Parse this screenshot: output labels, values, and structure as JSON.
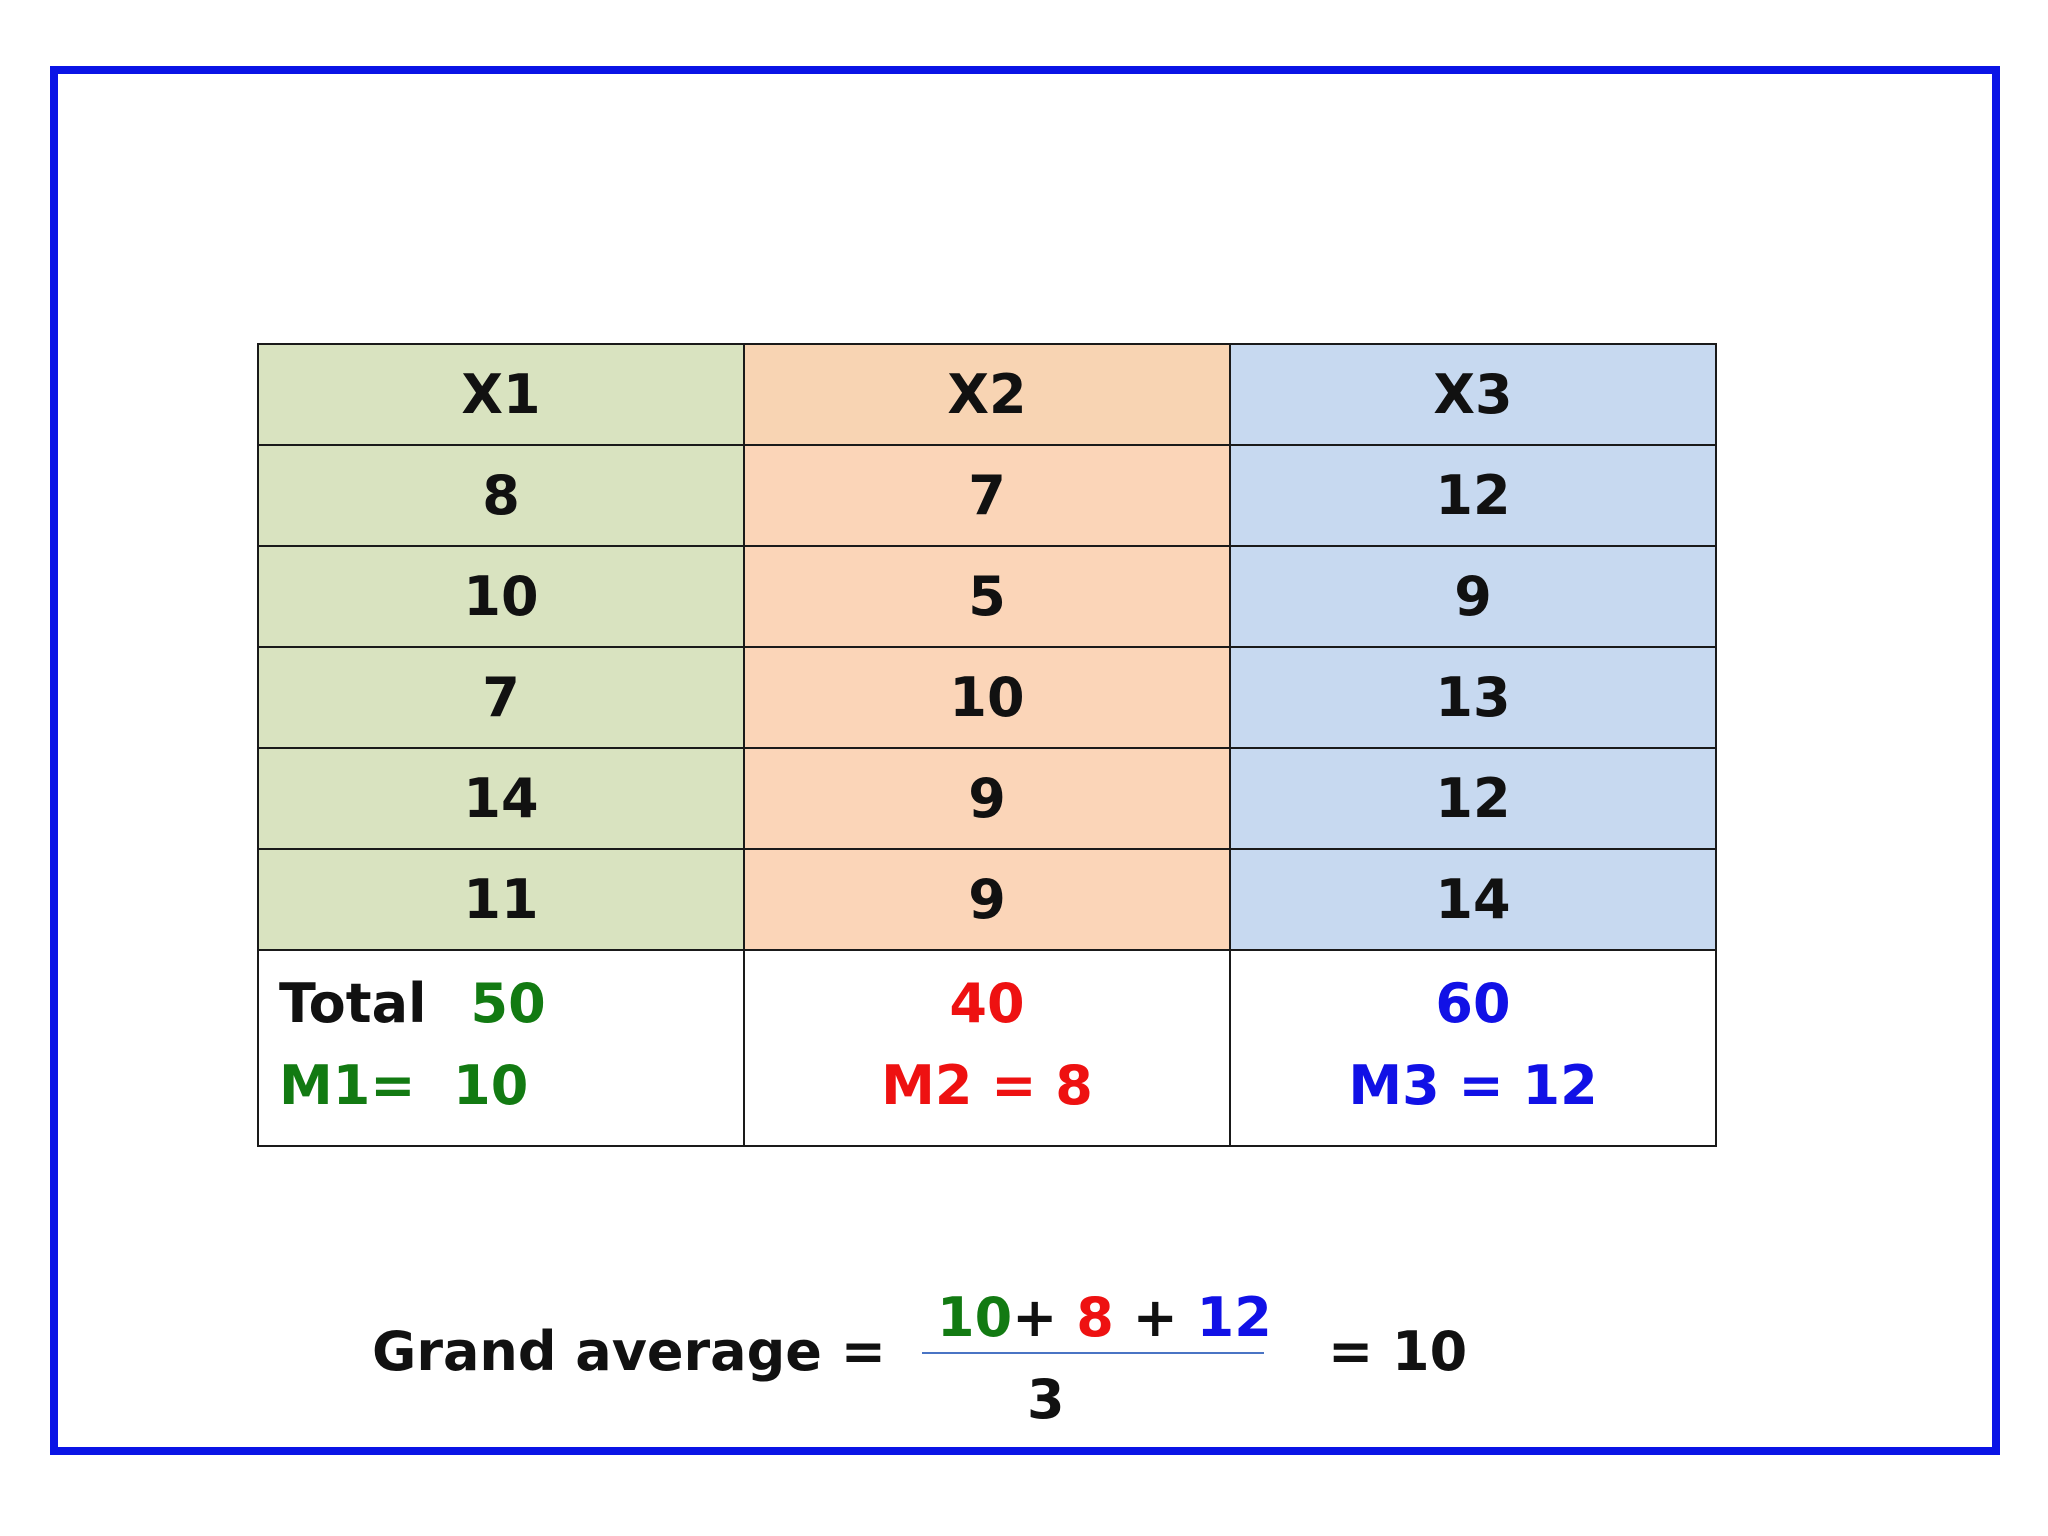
{
  "table": {
    "headers": [
      "X1",
      "X2",
      "X3"
    ],
    "rows": [
      [
        "8",
        "7",
        "12"
      ],
      [
        "10",
        "5",
        "9"
      ],
      [
        "7",
        "10",
        "13"
      ],
      [
        "14",
        "9",
        "12"
      ],
      [
        "11",
        "9",
        "14"
      ]
    ],
    "summary": {
      "total_label": "Total",
      "totals": [
        "50",
        "40",
        "60"
      ],
      "means": [
        "M1=  10",
        "M2 = 8",
        "M3 = 12"
      ]
    }
  },
  "formula": {
    "label": "Grand average =",
    "numerator": [
      "10",
      "+ ",
      "8",
      " + ",
      "12"
    ],
    "denominator": "3",
    "result": "= 10"
  },
  "colors": {
    "frame": "#0a14e6",
    "x1": "#d9e3c0",
    "x2": "#f8d4b3",
    "x3": "#c7d9f0",
    "green": "#127a12",
    "red": "#ee1111",
    "blue": "#1111e6"
  }
}
